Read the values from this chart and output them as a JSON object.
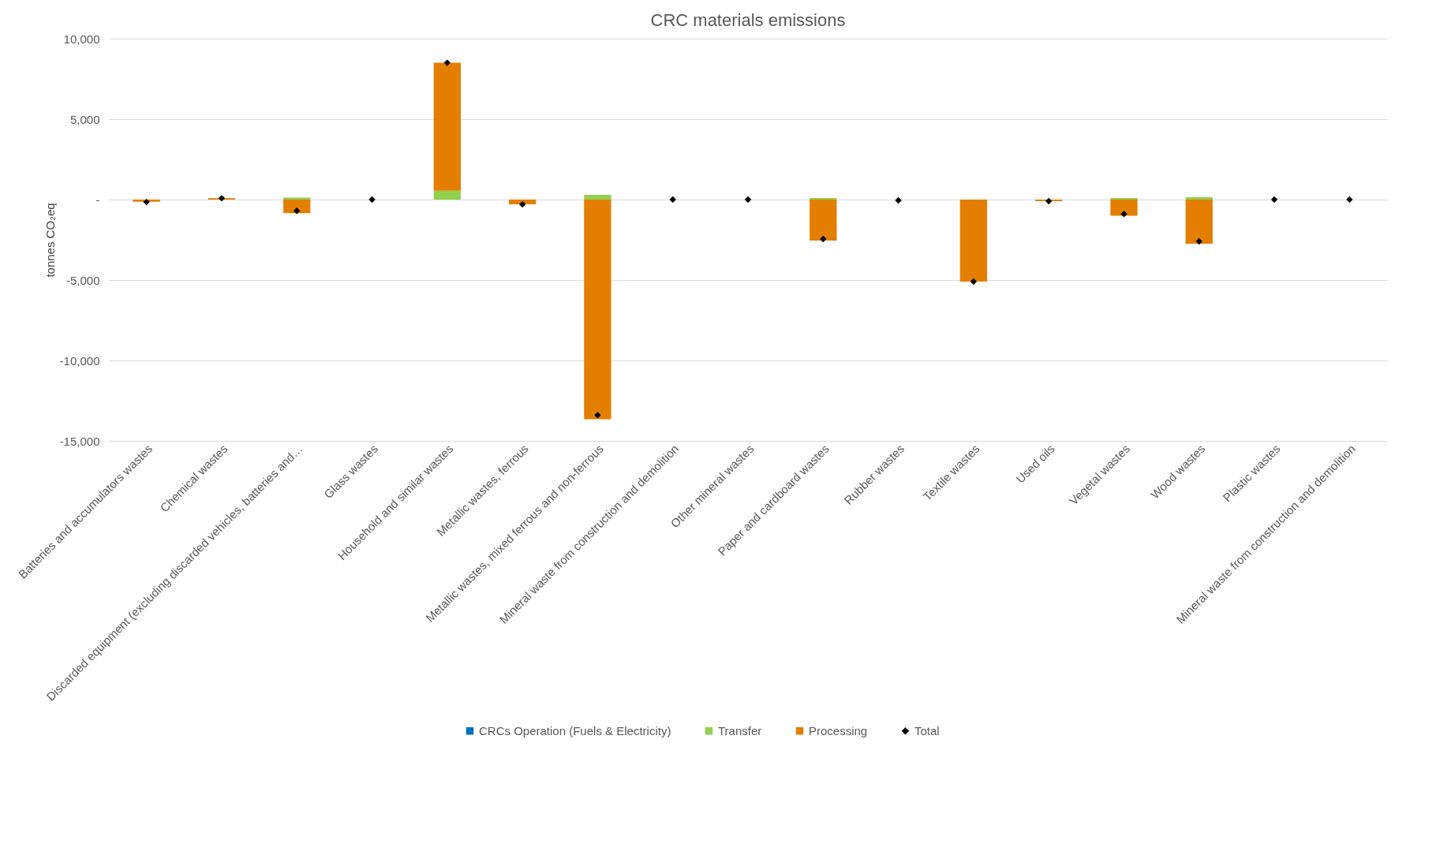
{
  "chart_data": {
    "type": "bar",
    "stacked": true,
    "title": "CRC materials emissions",
    "ylabel": "tonnes CO₂eq",
    "categories": [
      "Batteries and accumulators wastes",
      "Chemical wastes",
      "Discarded equipment (excluding discarded vehicles, batteries and…",
      "Glass wastes",
      "Household and similar wastes",
      "Metallic wastes, ferrous",
      "Metallic wastes, mixed ferrous and non-ferrous",
      "Mineral waste from construction and demolition",
      "Other mineral wastes",
      "Paper and cardboard wastes",
      "Rubber wastes",
      "Textile wastes",
      "Used oils",
      "Vegetal wastes",
      "Wood wastes",
      "Plastic wastes",
      "Mineral waste from construction and demolition"
    ],
    "series": [
      {
        "name": "CRCs Operation (Fuels & Electricity)",
        "color": "#0070c0",
        "values": [
          null,
          null,
          null,
          null,
          null,
          null,
          null,
          null,
          null,
          null,
          null,
          null,
          null,
          null,
          null,
          null,
          null
        ]
      },
      {
        "name": "Transfer",
        "color": "#92d050",
        "values": [
          null,
          null,
          120,
          null,
          550,
          null,
          300,
          null,
          null,
          100,
          null,
          null,
          null,
          100,
          150,
          null,
          null
        ]
      },
      {
        "name": "Processing",
        "color": "#e37e00",
        "values": [
          -130,
          80,
          -850,
          0,
          7950,
          -300,
          -13650,
          0,
          0,
          -2550,
          0,
          -5100,
          -100,
          -1000,
          -2750,
          0,
          0
        ]
      },
      {
        "name": "Total",
        "type": "scatter",
        "marker": "diamond",
        "color": "#000000",
        "values": [
          -150,
          80,
          -700,
          0,
          8500,
          -300,
          -13400,
          0,
          0,
          -2450,
          -50,
          -5100,
          -100,
          -900,
          -2600,
          0,
          0
        ]
      }
    ],
    "ylim": [
      -15000,
      10000
    ],
    "yticks": [
      {
        "value": -15000,
        "label": "-15,000"
      },
      {
        "value": -10000,
        "label": "-10,000"
      },
      {
        "value": -5000,
        "label": "-5,000"
      },
      {
        "value": 0,
        "label": "-"
      },
      {
        "value": 5000,
        "label": "5,000"
      },
      {
        "value": 10000,
        "label": "10,000"
      }
    ],
    "grid": "y",
    "legend": "bottom"
  }
}
